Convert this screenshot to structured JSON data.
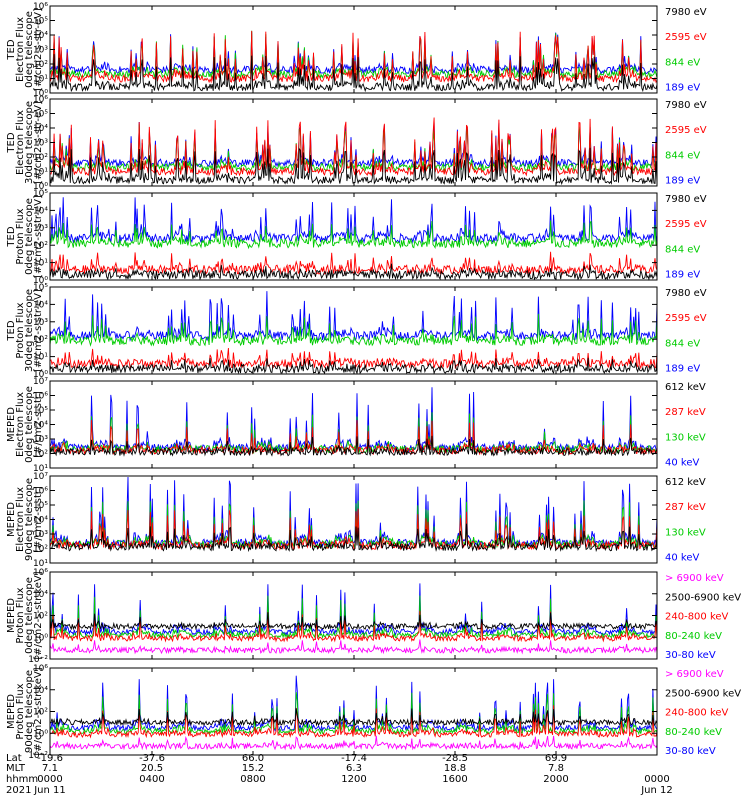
{
  "chart_data": [
    {
      "type": "line",
      "ylabel": [
        "TED",
        "Electron Flux",
        "0deg telescope",
        "[#/cm2-s-str-eV]"
      ],
      "ylim": [
        1,
        1000000
      ],
      "y_scale": "log",
      "ytick_labels": [
        "10⁰",
        "10¹",
        "10²",
        "10³",
        "10⁴",
        "10⁵",
        "10⁶"
      ],
      "series": [
        {
          "name": "7980 eV",
          "color": "#000000"
        },
        {
          "name": "2595 eV",
          "color": "#ff0000"
        },
        {
          "name": "844 eV",
          "color": "#00cc00"
        },
        {
          "name": "189 eV",
          "color": "#0000ff"
        }
      ]
    },
    {
      "type": "line",
      "ylabel": [
        "TED",
        "Electron Flux",
        "30deg telescope",
        "[#/cm2-s-str-eV]"
      ],
      "ylim": [
        1,
        1000000
      ],
      "y_scale": "log",
      "ytick_labels": [
        "10⁰",
        "10¹",
        "10²",
        "10³",
        "10⁴",
        "10⁵",
        "10⁶"
      ],
      "series": [
        {
          "name": "7980 eV",
          "color": "#000000"
        },
        {
          "name": "2595 eV",
          "color": "#ff0000"
        },
        {
          "name": "844 eV",
          "color": "#00cc00"
        },
        {
          "name": "189 eV",
          "color": "#0000ff"
        }
      ]
    },
    {
      "type": "line",
      "ylabel": [
        "TED",
        "Proton Flux",
        "0deg telescope",
        "[#/cm2-s-str-eV]"
      ],
      "ylim": [
        1,
        100000
      ],
      "y_scale": "log",
      "ytick_labels": [
        "10⁰",
        "10¹",
        "10²",
        "10³",
        "10⁴",
        "10⁵"
      ],
      "series": [
        {
          "name": "7980 eV",
          "color": "#000000"
        },
        {
          "name": "2595 eV",
          "color": "#ff0000"
        },
        {
          "name": "844 eV",
          "color": "#00cc00"
        },
        {
          "name": "189 eV",
          "color": "#0000ff"
        }
      ]
    },
    {
      "type": "line",
      "ylabel": [
        "TED",
        "Proton Flux",
        "30deg telescope",
        "[#/cm2-s-str-eV]"
      ],
      "ylim": [
        1,
        100000
      ],
      "y_scale": "log",
      "ytick_labels": [
        "10⁰",
        "10¹",
        "10²",
        "10³",
        "10⁴",
        "10⁵"
      ],
      "series": [
        {
          "name": "7980 eV",
          "color": "#000000"
        },
        {
          "name": "2595 eV",
          "color": "#ff0000"
        },
        {
          "name": "844 eV",
          "color": "#00cc00"
        },
        {
          "name": "189 eV",
          "color": "#0000ff"
        }
      ]
    },
    {
      "type": "line",
      "ylabel": [
        "MEPED",
        "Electron Flux",
        "0deg telescope",
        "[#/cm2-s-str]"
      ],
      "ylim": [
        10,
        10000000
      ],
      "y_scale": "log",
      "ytick_labels": [
        "10¹",
        "10²",
        "10³",
        "10⁴",
        "10⁵",
        "10⁶",
        "10⁷"
      ],
      "series": [
        {
          "name": "612 keV",
          "color": "#000000"
        },
        {
          "name": "287 keV",
          "color": "#ff0000"
        },
        {
          "name": "130 keV",
          "color": "#00cc00"
        },
        {
          "name": "40 keV",
          "color": "#0000ff"
        }
      ]
    },
    {
      "type": "line",
      "ylabel": [
        "MEPED",
        "Electron Flux",
        "90deg telescope",
        "[#/cm2-s-str]"
      ],
      "ylim": [
        10,
        10000000
      ],
      "y_scale": "log",
      "ytick_labels": [
        "10¹",
        "10²",
        "10³",
        "10⁴",
        "10⁵",
        "10⁶",
        "10⁷"
      ],
      "series": [
        {
          "name": "612 keV",
          "color": "#000000"
        },
        {
          "name": "287 keV",
          "color": "#ff0000"
        },
        {
          "name": "130 keV",
          "color": "#00cc00"
        },
        {
          "name": "40 keV",
          "color": "#0000ff"
        }
      ]
    },
    {
      "type": "line",
      "ylabel": [
        "MEPED",
        "Proton Flux",
        "0deg telescope",
        "[#/cm2-s-str-keV]"
      ],
      "ylim": [
        0.01,
        1000000
      ],
      "y_scale": "log",
      "ytick_labels": [
        "10⁻²",
        "10⁰",
        "10²",
        "10⁴",
        "10⁶"
      ],
      "series": [
        {
          "name": "> 6900 keV",
          "color": "#ff00ff"
        },
        {
          "name": "2500-6900 keV",
          "color": "#000000"
        },
        {
          "name": "240-800 keV",
          "color": "#ff0000"
        },
        {
          "name": "80-240 keV",
          "color": "#00cc00"
        },
        {
          "name": "30-80 keV",
          "color": "#0000ff"
        }
      ]
    },
    {
      "type": "line",
      "ylabel": [
        "MEPED",
        "Proton Flux",
        "90deg telescope",
        "[#/cm2-s-str-keV]"
      ],
      "ylim": [
        0.01,
        1000000
      ],
      "y_scale": "log",
      "ytick_labels": [
        "10⁻²",
        "10⁰",
        "10²",
        "10⁴",
        "10⁶"
      ],
      "series": [
        {
          "name": "> 6900 keV",
          "color": "#ff00ff"
        },
        {
          "name": "2500-6900 keV",
          "color": "#000000"
        },
        {
          "name": "240-800 keV",
          "color": "#ff0000"
        },
        {
          "name": "80-240 keV",
          "color": "#00cc00"
        },
        {
          "name": "30-80 keV",
          "color": "#0000ff"
        }
      ]
    }
  ],
  "x_axis": {
    "row_labels": [
      "Lat",
      "MLT",
      "hhmm",
      "2021"
    ],
    "columns": [
      {
        "lat": "-19.6",
        "mlt": "7.1",
        "hhmm": "0000",
        "date": "Jun 11"
      },
      {
        "lat": "-37.6",
        "mlt": "20.5",
        "hhmm": "0400",
        "date": ""
      },
      {
        "lat": "66.0",
        "mlt": "15.2",
        "hhmm": "0800",
        "date": ""
      },
      {
        "lat": "-17.4",
        "mlt": "6.3",
        "hhmm": "1200",
        "date": ""
      },
      {
        "lat": "-28.5",
        "mlt": "18.8",
        "hhmm": "1600",
        "date": ""
      },
      {
        "lat": "69.9",
        "mlt": "7.8",
        "hhmm": "2000",
        "date": ""
      },
      {
        "lat": "",
        "mlt": "",
        "hhmm": "0000",
        "date": "Jun 12"
      }
    ]
  }
}
